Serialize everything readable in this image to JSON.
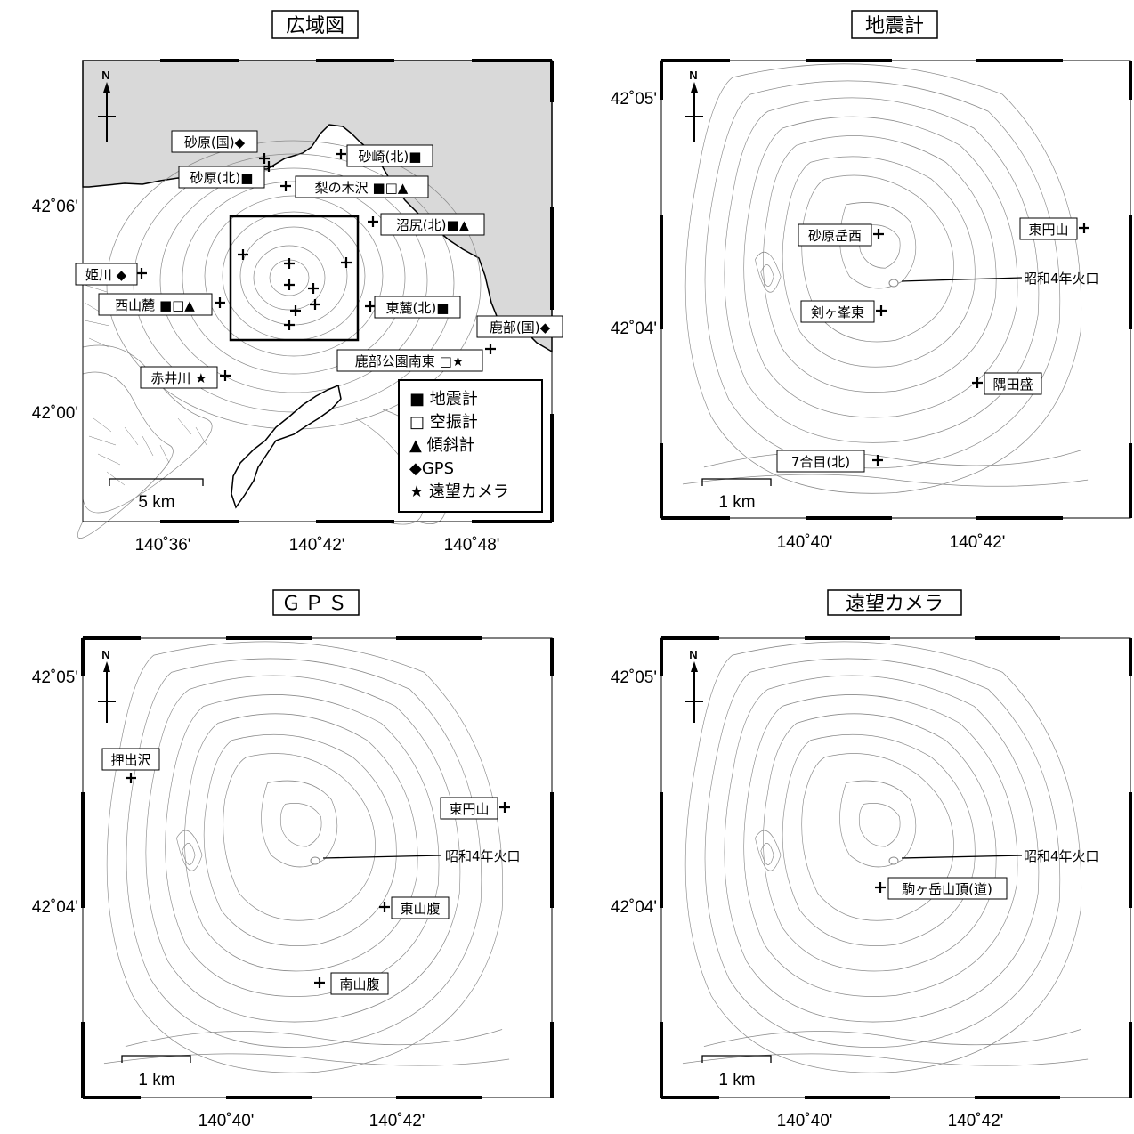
{
  "panels": [
    {
      "id": "wide",
      "title": "広域図",
      "lat_labels": [
        "42˚06'",
        "42˚00'"
      ],
      "lon_labels": [
        "140˚36'",
        "140˚42'",
        "140˚48'"
      ],
      "scale": "5 km",
      "north": "N",
      "stations": [
        {
          "label": "砂原(国)◆"
        },
        {
          "label": "砂原(北)■"
        },
        {
          "label": "砂崎(北)■"
        },
        {
          "label": "梨の木沢 ■□▲"
        },
        {
          "label": "沼尻(北)■▲"
        },
        {
          "label": "姫川 ◆"
        },
        {
          "label": "西山麓 ■□▲"
        },
        {
          "label": "東麓(北)■"
        },
        {
          "label": "鹿部(国)◆"
        },
        {
          "label": "鹿部公園南東 □★"
        },
        {
          "label": "赤井川 ★"
        }
      ],
      "legend": [
        {
          "label": "■ 地震計"
        },
        {
          "label": "□ 空振計"
        },
        {
          "label": "▲ 傾斜計"
        },
        {
          "label": "◆GPS"
        },
        {
          "label": "★ 遠望カメラ"
        }
      ]
    },
    {
      "id": "seismometer",
      "title": "地震計",
      "lat_labels": [
        "42˚05'",
        "42˚04'"
      ],
      "lon_labels": [
        "140˚40'",
        "140˚42'"
      ],
      "scale": "1 km",
      "north": "N",
      "stations": [
        {
          "label": "砂原岳西"
        },
        {
          "label": "東円山"
        },
        {
          "label": "昭和4年火口"
        },
        {
          "label": "剣ヶ峯東"
        },
        {
          "label": "隅田盛"
        },
        {
          "label": "7合目(北)"
        }
      ]
    },
    {
      "id": "gps",
      "title": "ＧＰＳ",
      "lat_labels": [
        "42˚05'",
        "42˚04'"
      ],
      "lon_labels": [
        "140˚40'",
        "140˚42'"
      ],
      "scale": "1 km",
      "north": "N",
      "stations": [
        {
          "label": "押出沢"
        },
        {
          "label": "東円山"
        },
        {
          "label": "昭和4年火口"
        },
        {
          "label": "東山腹"
        },
        {
          "label": "南山腹"
        }
      ]
    },
    {
      "id": "camera",
      "title": "遠望カメラ",
      "lat_labels": [
        "42˚05'",
        "42˚04'"
      ],
      "lon_labels": [
        "140˚40'",
        "140˚42'"
      ],
      "scale": "1 km",
      "north": "N",
      "stations": [
        {
          "label": "昭和4年火口"
        },
        {
          "label": "駒ヶ岳山頂(道)"
        }
      ]
    }
  ],
  "colors": {
    "sea": "#d9d9d9",
    "contour": "#8a8a8a",
    "frame": "#000000"
  }
}
